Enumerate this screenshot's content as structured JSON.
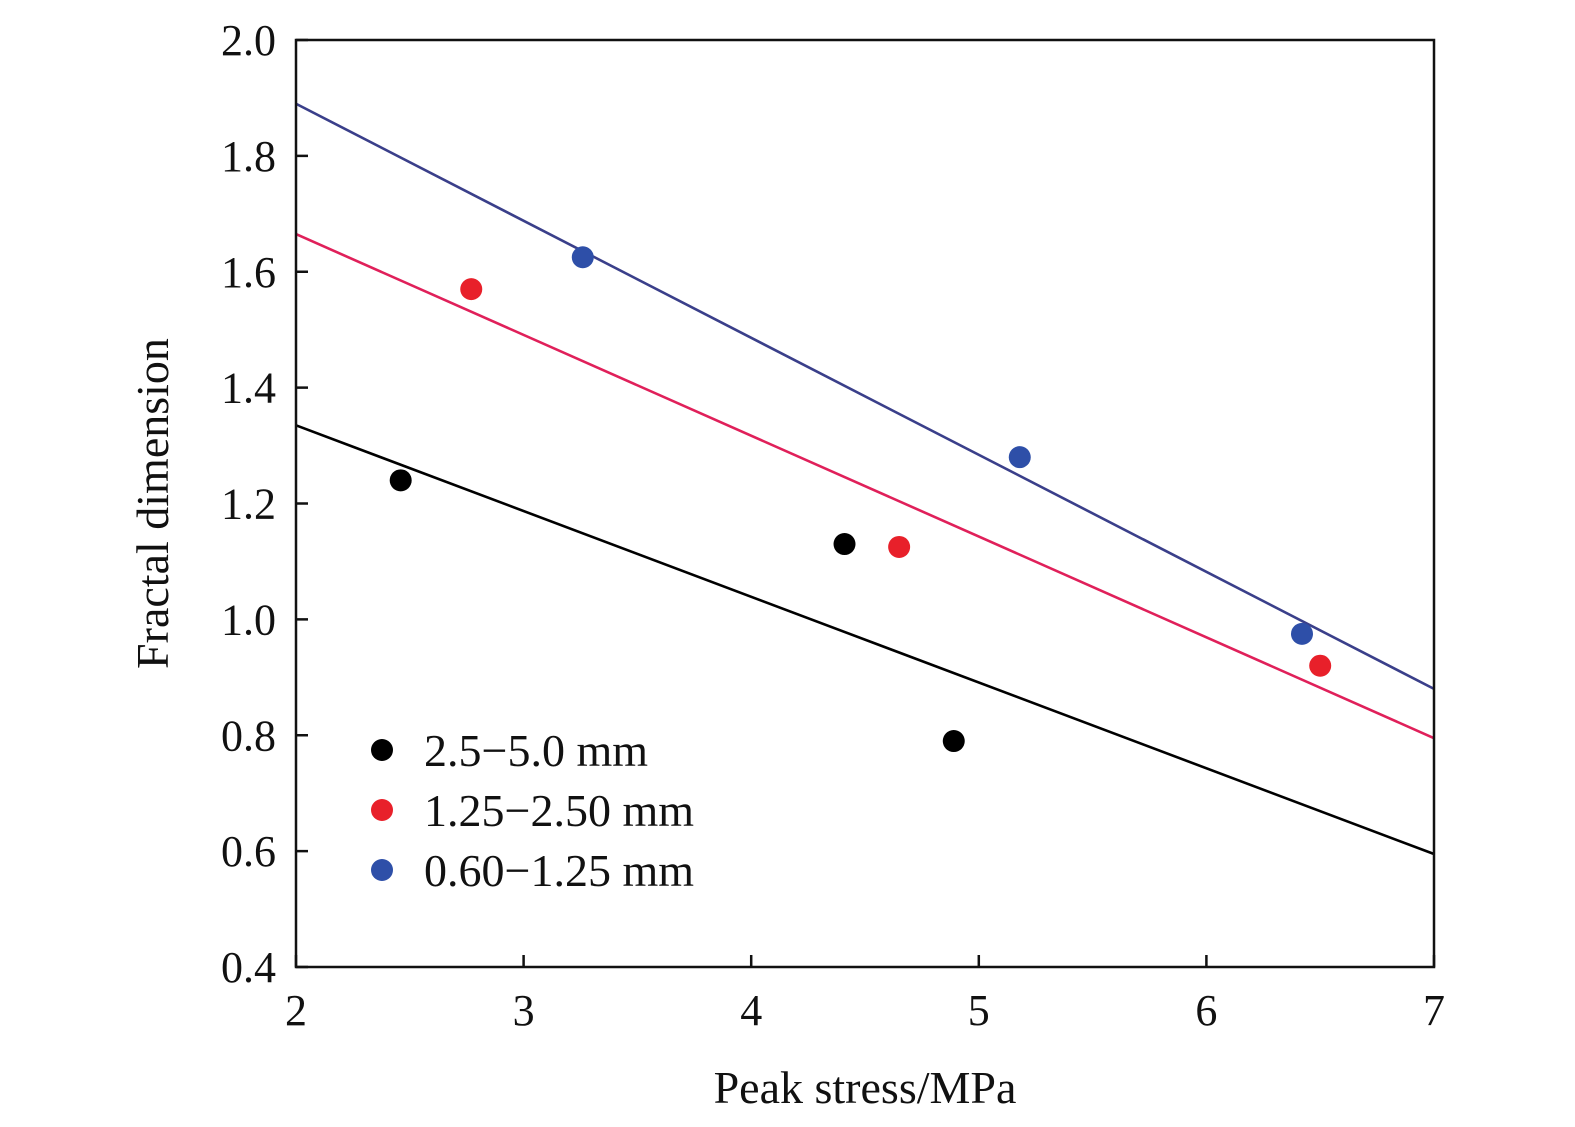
{
  "chart_data": {
    "type": "scatter",
    "title": "",
    "xlabel": "Peak stress/MPa",
    "ylabel": "Fractal dimension",
    "xlim": [
      2,
      7
    ],
    "ylim": [
      0.4,
      2.0
    ],
    "xticks": [
      "2",
      "3",
      "4",
      "5",
      "6",
      "7"
    ],
    "yticks": [
      "0.4",
      "0.6",
      "0.8",
      "1.0",
      "1.2",
      "1.4",
      "1.6",
      "1.8",
      "2.0"
    ],
    "grid": false,
    "legend_position": "bottom-left",
    "series": [
      {
        "name": "2.5−5.0 mm",
        "color": "#000000",
        "line_color": "#000000",
        "points": [
          {
            "x": 2.46,
            "y": 1.24
          },
          {
            "x": 4.41,
            "y": 1.13
          },
          {
            "x": 4.89,
            "y": 0.79
          }
        ],
        "fit_line": [
          {
            "x": 2,
            "y": 1.335
          },
          {
            "x": 7,
            "y": 0.595
          }
        ]
      },
      {
        "name": "1.25−2.50 mm",
        "color": "#e8202a",
        "line_color": "#e0205a",
        "points": [
          {
            "x": 2.77,
            "y": 1.57
          },
          {
            "x": 4.65,
            "y": 1.125
          },
          {
            "x": 6.5,
            "y": 0.92
          }
        ],
        "fit_line": [
          {
            "x": 2,
            "y": 1.665
          },
          {
            "x": 7,
            "y": 0.795
          }
        ]
      },
      {
        "name": "0.60−1.25 mm",
        "color": "#2e4fa8",
        "line_color": "#3a3f8a",
        "points": [
          {
            "x": 3.26,
            "y": 1.625
          },
          {
            "x": 5.18,
            "y": 1.28
          },
          {
            "x": 6.42,
            "y": 0.975
          }
        ],
        "fit_line": [
          {
            "x": 2,
            "y": 1.89
          },
          {
            "x": 7,
            "y": 0.88
          }
        ]
      }
    ]
  }
}
